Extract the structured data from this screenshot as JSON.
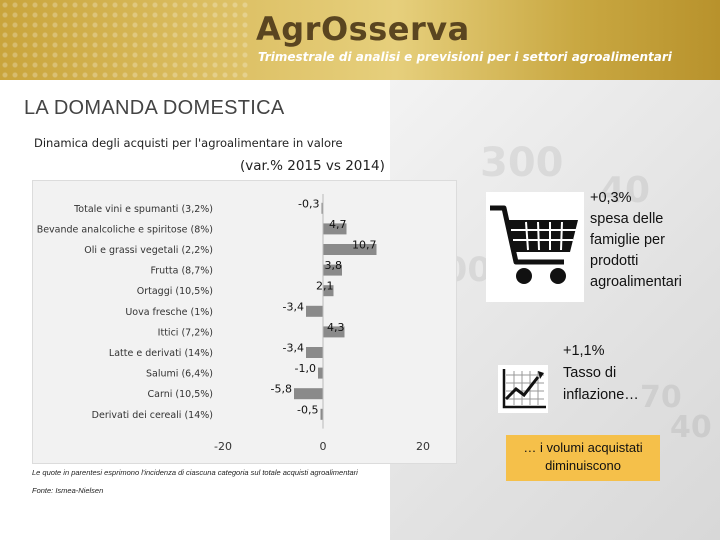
{
  "header": {
    "brand": "AgrOsserva",
    "tagline": "Trimestrale di analisi e previsioni per i settori agroalimentari"
  },
  "section_title": "LA DOMANDA DOMESTICA",
  "chart_data": {
    "type": "bar",
    "orientation": "horizontal",
    "title": "Dinamica degli acquisti per l'agroalimentare in valore",
    "subtitle": "(var.% 2015 vs 2014)",
    "categories": [
      "Totale vini e spumanti (3,2%)",
      "Bevande analcoliche e spiritose (8%)",
      "Oli e grassi vegetali (2,2%)",
      "Frutta (8,7%)",
      "Ortaggi (10,5%)",
      "Uova fresche (1%)",
      "Ittici (7,2%)",
      "Latte e derivati (14%)",
      "Salumi (6,4%)",
      "Carni (10,5%)",
      "Derivati dei cereali (14%)"
    ],
    "values": [
      -0.3,
      4.7,
      10.7,
      3.8,
      2.1,
      -3.4,
      4.3,
      -3.4,
      -1.0,
      -5.8,
      -0.5
    ],
    "value_labels": [
      "-0,3",
      "4,7",
      "10,7",
      "3,8",
      "2,1",
      "-3,4",
      "4,3",
      "-3,4",
      "-1,0",
      "-5,8",
      "-0,5"
    ],
    "xlim": [
      -20,
      20
    ],
    "xticks": [
      -20,
      0,
      20
    ],
    "xtick_labels": [
      "-20",
      "0",
      "20"
    ],
    "bar_color": "#8a8a8a",
    "grid": false
  },
  "note": "Le quote in parentesi esprimono l'incidenza di ciascuna categoria sul totale acquisti agroalimentari",
  "source": "Fonte: Ismea-Nielsen",
  "callouts": {
    "spesa": [
      "+0,3%",
      "spesa delle",
      "famiglie per",
      "prodotti",
      "agroalimentari"
    ],
    "inflazione": [
      "+1,1%",
      "Tasso di",
      "inflazione…"
    ],
    "volumi": [
      "… i volumi acquistati",
      "diminuiscono"
    ]
  },
  "icons": {
    "cart": "shopping-cart-icon",
    "stat": "line-chart-icon"
  },
  "colors": {
    "banner": "#d4b24f",
    "highlight_box": "#f5c04a",
    "bar": "#8a8a8a"
  }
}
